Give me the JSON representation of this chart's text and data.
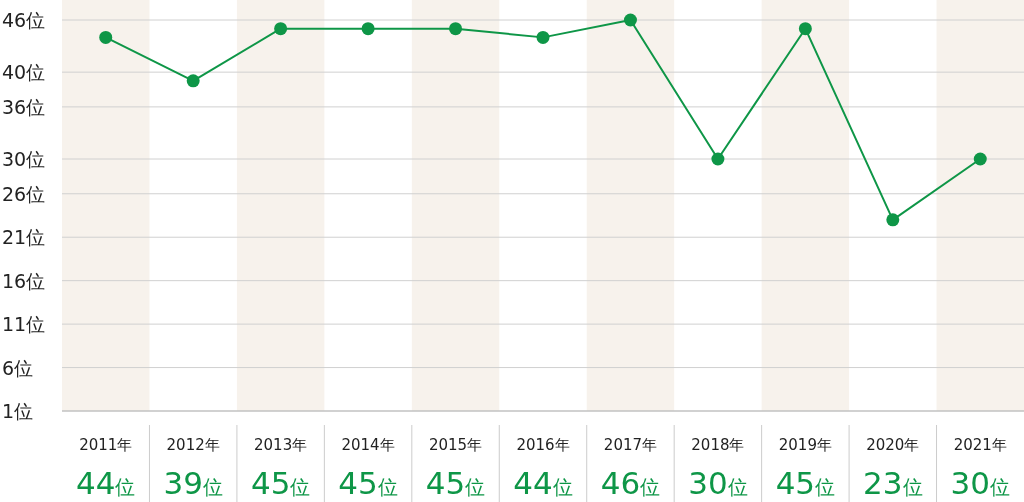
{
  "chart_data": {
    "type": "line",
    "categories": [
      "2011年",
      "2012年",
      "2013年",
      "2014年",
      "2015年",
      "2016年",
      "2017年",
      "2018年",
      "2019年",
      "2020年",
      "2021年"
    ],
    "series": [
      {
        "color": "#0e9647",
        "values": [
          44,
          39,
          45,
          45,
          45,
          44,
          46,
          30,
          45,
          23,
          30
        ],
        "value_labels": [
          "44位",
          "39位",
          "45位",
          "45位",
          "45位",
          "44位",
          "46位",
          "30位",
          "45位",
          "23位",
          "30位"
        ]
      }
    ],
    "ylim": [
      1,
      46
    ],
    "yticks": [
      {
        "value": 1,
        "label": "1位"
      },
      {
        "value": 6,
        "label": "6位"
      },
      {
        "value": 11,
        "label": "11位"
      },
      {
        "value": 16,
        "label": "16位"
      },
      {
        "value": 21,
        "label": "21位"
      },
      {
        "value": 26,
        "label": "26位"
      },
      {
        "value": 30,
        "label": "30位"
      },
      {
        "value": 36,
        "label": "36位"
      },
      {
        "value": 40,
        "label": "40位"
      },
      {
        "value": 46,
        "label": "46位"
      }
    ],
    "grid": "y",
    "marker": "circle",
    "line_style": "solid"
  }
}
